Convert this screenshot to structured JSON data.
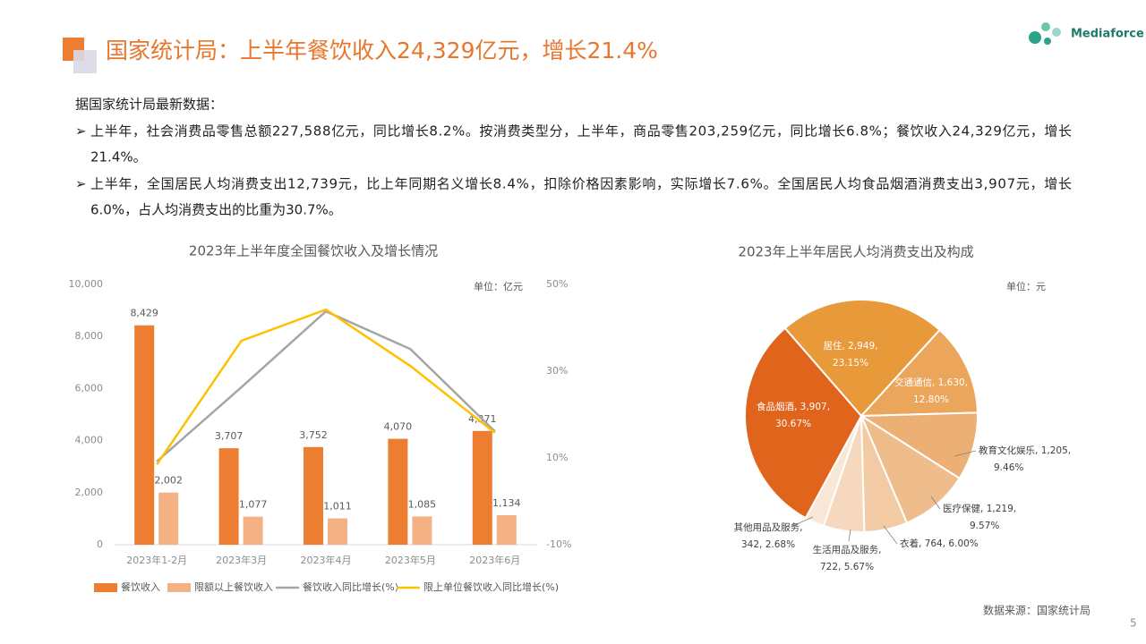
{
  "header": {
    "title": "国家统计局：上半年餐饮收入24,329亿元，增长21.4%",
    "logo": "Mediaforce"
  },
  "intro": "据国家统计局最新数据：",
  "bullets": [
    [
      "上半年，社会消费品零售总额227,588亿元，同比增长8.2%。按消费类型分，上半年，商品零售203,259亿元，同比增长6.8%；餐饮收入24,329亿元，增长",
      "21.4%。"
    ],
    [
      "上半年，全国居民人均消费支出12,739元，比上年同期名义增长8.4%，扣除价格因素影响，实际增长7.6%。全国居民人均食品烟酒消费支出3,907元，增长",
      "6.0%，占人均消费支出的比重为30.7%。"
    ]
  ],
  "chart_data": [
    {
      "type": "bar",
      "title": "2023年上半年度全国餐饮收入及增长情况",
      "unit": "单位：亿元",
      "categories": [
        "2023年1-2月",
        "2023年3月",
        "2023年4月",
        "2023年5月",
        "2023年6月"
      ],
      "series": [
        {
          "name": "餐饮收入",
          "color": "#ed7d31",
          "values": [
            8429,
            3707,
            3752,
            4070,
            4371
          ],
          "value_labels": [
            "8,429",
            "3,707",
            "3,752",
            "4,070",
            "4,371"
          ]
        },
        {
          "name": "限额以上餐饮收入",
          "color": "#f4b183",
          "values": [
            2002,
            1077,
            1011,
            1085,
            1134
          ],
          "value_labels": [
            "2,002",
            "1,077",
            "1,011",
            "1,085",
            "1,134"
          ]
        },
        {
          "name": "餐饮收入同比增长(%)",
          "type": "line",
          "axis": "y2",
          "color": "#a5a5a5",
          "values": [
            9.2,
            26.3,
            43.8,
            35.1,
            16.1
          ]
        },
        {
          "name": "限上单位餐饮收入同比增长(%)",
          "type": "line",
          "axis": "y2",
          "color": "#ffc000",
          "values": [
            8.5,
            37.0,
            44.2,
            31.2,
            15.8
          ]
        }
      ],
      "ylim": [
        0,
        10000
      ],
      "yticks": [
        0,
        {
          "value": 2000,
          "label": "2,000"
        },
        {
          "value": 4000,
          "label": "4,000"
        },
        {
          "value": 6000,
          "label": "6,000"
        },
        {
          "value": 8000,
          "label": "8,000"
        },
        {
          "value": 10000,
          "label": "10,000"
        }
      ],
      "y2lim": [
        -10,
        50
      ],
      "y2ticks": [
        {
          "value": -10,
          "label": "-10%"
        },
        {
          "value": 10,
          "label": "10%"
        },
        {
          "value": 30,
          "label": "30%"
        },
        {
          "value": 50,
          "label": "50%"
        }
      ]
    },
    {
      "type": "pie",
      "title": "2023年上半年居民人均消费支出及构成",
      "unit": "单位：元",
      "label_separator": ", ",
      "categories": [
        "居住",
        "交通通信",
        "教育文化娱乐",
        "医疗保健",
        "衣着",
        "生活用品及服务",
        "其他用品及服务",
        "食品烟酒"
      ],
      "values": [
        2949,
        1630,
        1205,
        1219,
        764,
        722,
        342,
        3907
      ],
      "value_labels": [
        "2,949",
        "1,630",
        "1,205",
        "1,219",
        "764",
        "722",
        "342",
        "3,907"
      ],
      "percents": [
        23.15,
        12.8,
        9.46,
        9.57,
        6.0,
        5.67,
        2.68,
        30.67
      ],
      "percent_labels": [
        "23.15%",
        "12.80%",
        "9.46%",
        "9.57%",
        "6.00%",
        "5.67%",
        "2.68%",
        "30.67%"
      ],
      "colors": [
        "#e8993a",
        "#eba65c",
        "#edb074",
        "#efbd8c",
        "#f2caa4",
        "#f5d8bd",
        "#f8e7d6",
        "#e0641c"
      ]
    }
  ],
  "footer": {
    "source": "数据来源：国家统计局",
    "page": "5"
  }
}
